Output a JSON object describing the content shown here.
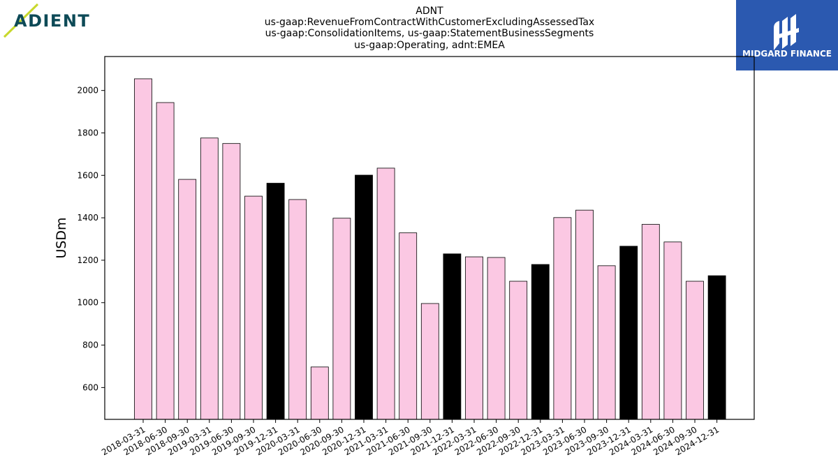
{
  "logo_left": {
    "text": "ADIENT",
    "color": "#0d4a57",
    "accent": "#c8d82c"
  },
  "logo_right": {
    "text": "MIDGARD FINANCE",
    "bg": "#2b59b0",
    "fg": "#ffffff"
  },
  "colors": {
    "regular": "#fbc8e3",
    "year_end": "#000000",
    "edge": "#000000"
  },
  "chart_data": {
    "type": "bar",
    "title": [
      "ADNT",
      "us-gaap:RevenueFromContractWithCustomerExcludingAssessedTax",
      "us-gaap:ConsolidationItems, us-gaap:StatementBusinessSegments",
      "us-gaap:Operating, adnt:EMEA"
    ],
    "xlabel": "",
    "ylabel": "USDm",
    "ylim": [
      450,
      2160
    ],
    "yticks": [
      600,
      800,
      1000,
      1200,
      1400,
      1600,
      1800,
      2000
    ],
    "grid": false,
    "categories": [
      "2018-03-31",
      "2018-06-30",
      "2018-09-30",
      "2019-03-31",
      "2019-06-30",
      "2019-09-30",
      "2019-12-31",
      "2020-03-31",
      "2020-06-30",
      "2020-09-30",
      "2020-12-31",
      "2021-03-31",
      "2021-06-30",
      "2021-09-30",
      "2021-12-31",
      "2022-03-31",
      "2022-06-30",
      "2022-09-30",
      "2022-12-31",
      "2023-03-31",
      "2023-06-30",
      "2023-09-30",
      "2023-12-31",
      "2024-03-31",
      "2024-06-30",
      "2024-09-30",
      "2024-12-31"
    ],
    "values": [
      2055,
      1943,
      1581,
      1776,
      1750,
      1502,
      1563,
      1486,
      697,
      1398,
      1601,
      1634,
      1329,
      996,
      1230,
      1216,
      1213,
      1101,
      1180,
      1401,
      1436,
      1174,
      1266,
      1369,
      1286,
      1101,
      1127
    ],
    "year_end": [
      false,
      false,
      false,
      false,
      false,
      false,
      true,
      false,
      false,
      false,
      true,
      false,
      false,
      false,
      true,
      false,
      false,
      false,
      true,
      false,
      false,
      false,
      true,
      false,
      false,
      false,
      true
    ]
  }
}
